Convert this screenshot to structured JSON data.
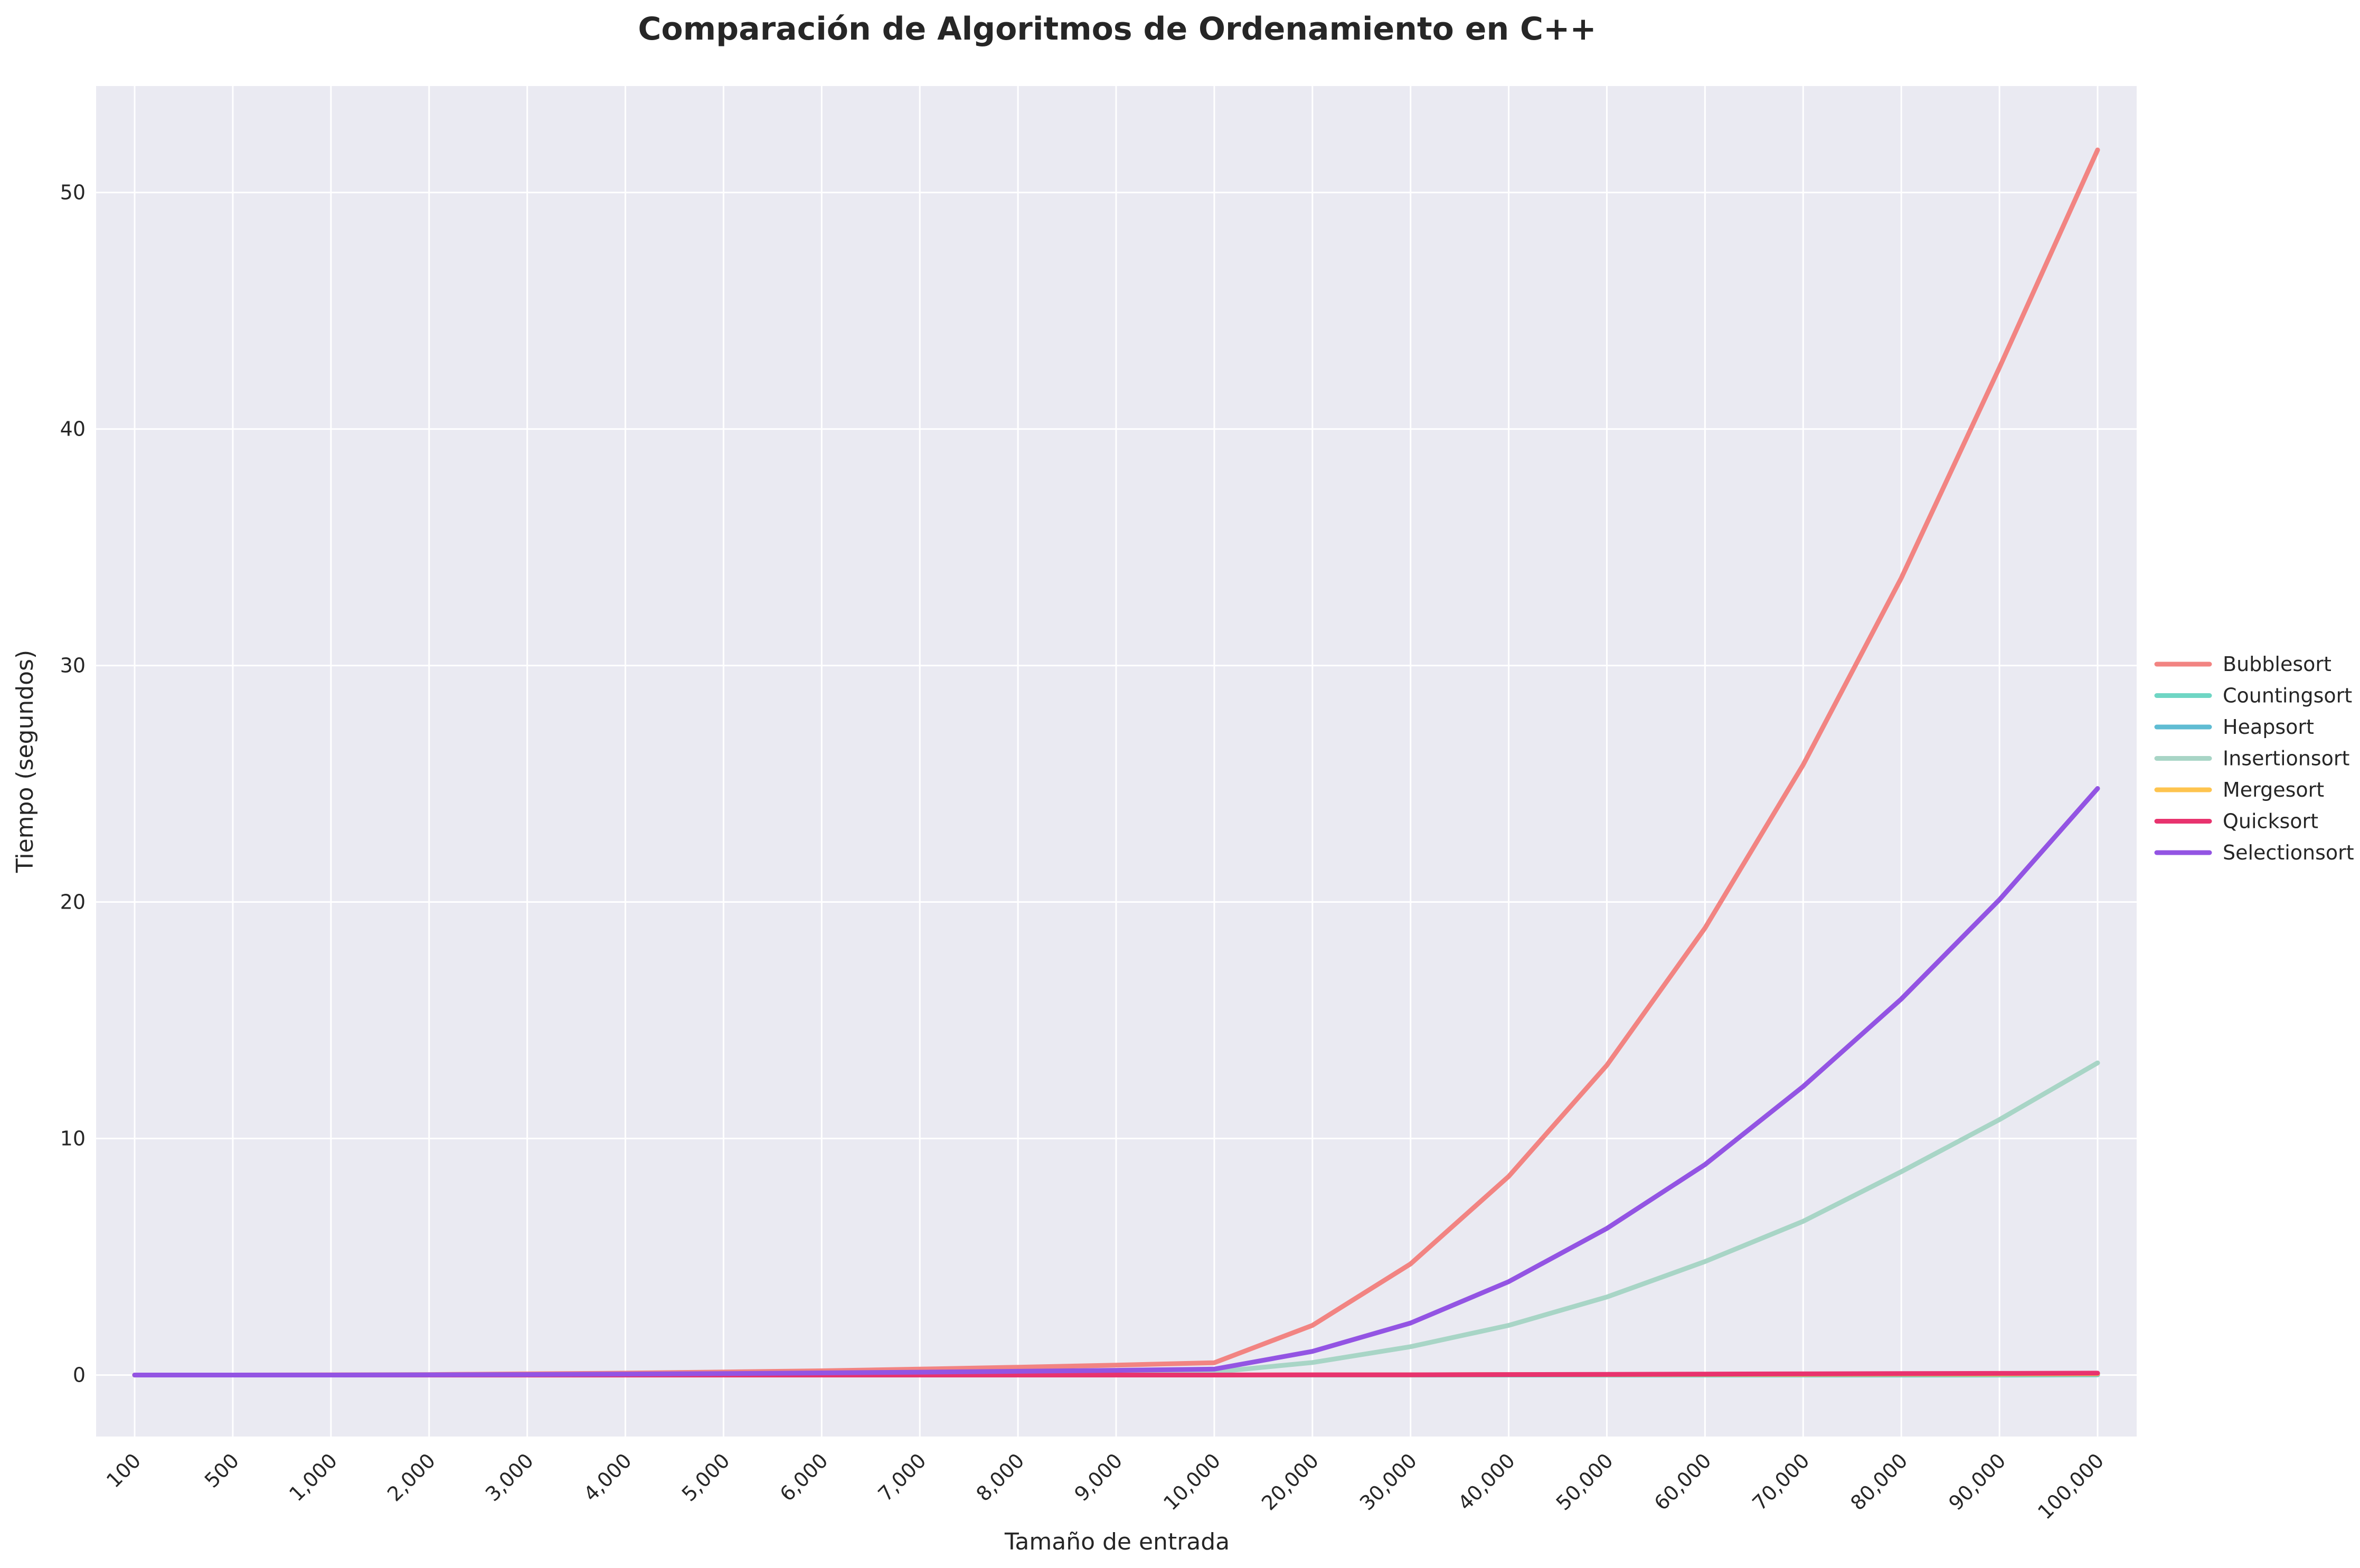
{
  "chart_data": {
    "type": "line",
    "title": "Comparación de Algoritmos de Ordenamiento en C++",
    "xlabel": "Tamaño de entrada",
    "ylabel": "Tiempo (segundos)",
    "categories": [
      "100",
      "500",
      "1,000",
      "2,000",
      "3,000",
      "4,000",
      "5,000",
      "6,000",
      "7,000",
      "8,000",
      "9,000",
      "10,000",
      "20,000",
      "30,000",
      "40,000",
      "50,000",
      "60,000",
      "70,000",
      "80,000",
      "90,000",
      "100,000"
    ],
    "yticks": [
      "0",
      "10",
      "20",
      "30",
      "40",
      "50"
    ],
    "ylim": [
      -2.6,
      54.5
    ],
    "grid": true,
    "legend_position": "right",
    "series": [
      {
        "name": "Bubblesort",
        "color": "#f28482",
        "values": [
          0,
          0,
          0.01,
          0.02,
          0.05,
          0.08,
          0.13,
          0.18,
          0.25,
          0.33,
          0.42,
          0.52,
          2.1,
          4.7,
          8.4,
          13.1,
          18.9,
          25.8,
          33.7,
          42.6,
          51.8
        ]
      },
      {
        "name": "Countingsort",
        "color": "#6fd6c4",
        "values": [
          0,
          0,
          0,
          0,
          0,
          0,
          0,
          0,
          0,
          0,
          0,
          0,
          0,
          0,
          0,
          0,
          0,
          0,
          0,
          0,
          0.01
        ]
      },
      {
        "name": "Heapsort",
        "color": "#5fbcd3",
        "values": [
          0,
          0,
          0,
          0,
          0,
          0,
          0,
          0,
          0,
          0,
          0,
          0,
          0,
          0.01,
          0.01,
          0.01,
          0.02,
          0.02,
          0.02,
          0.03,
          0.03
        ]
      },
      {
        "name": "Insertionsort",
        "color": "#a8d5c6",
        "values": [
          0,
          0,
          0,
          0.01,
          0.01,
          0.02,
          0.03,
          0.05,
          0.06,
          0.08,
          0.1,
          0.13,
          0.53,
          1.2,
          2.1,
          3.3,
          4.8,
          6.5,
          8.6,
          10.8,
          13.2
        ]
      },
      {
        "name": "Mergesort",
        "color": "#fec44f",
        "values": [
          0,
          0,
          0,
          0,
          0,
          0,
          0,
          0,
          0,
          0,
          0,
          0,
          0.01,
          0.01,
          0.02,
          0.02,
          0.03,
          0.03,
          0.04,
          0.04,
          0.05
        ]
      },
      {
        "name": "Quicksort",
        "color": "#e8336e",
        "values": [
          0,
          0,
          0,
          0,
          0,
          0,
          0,
          0,
          0,
          0,
          0,
          0,
          0.01,
          0.01,
          0.02,
          0.03,
          0.04,
          0.05,
          0.06,
          0.07,
          0.08
        ]
      },
      {
        "name": "Selectionsort",
        "color": "#9354e3",
        "values": [
          0,
          0,
          0,
          0.01,
          0.02,
          0.04,
          0.06,
          0.09,
          0.12,
          0.16,
          0.2,
          0.25,
          1.0,
          2.2,
          3.95,
          6.2,
          8.9,
          12.2,
          15.9,
          20.1,
          24.8
        ]
      }
    ]
  }
}
